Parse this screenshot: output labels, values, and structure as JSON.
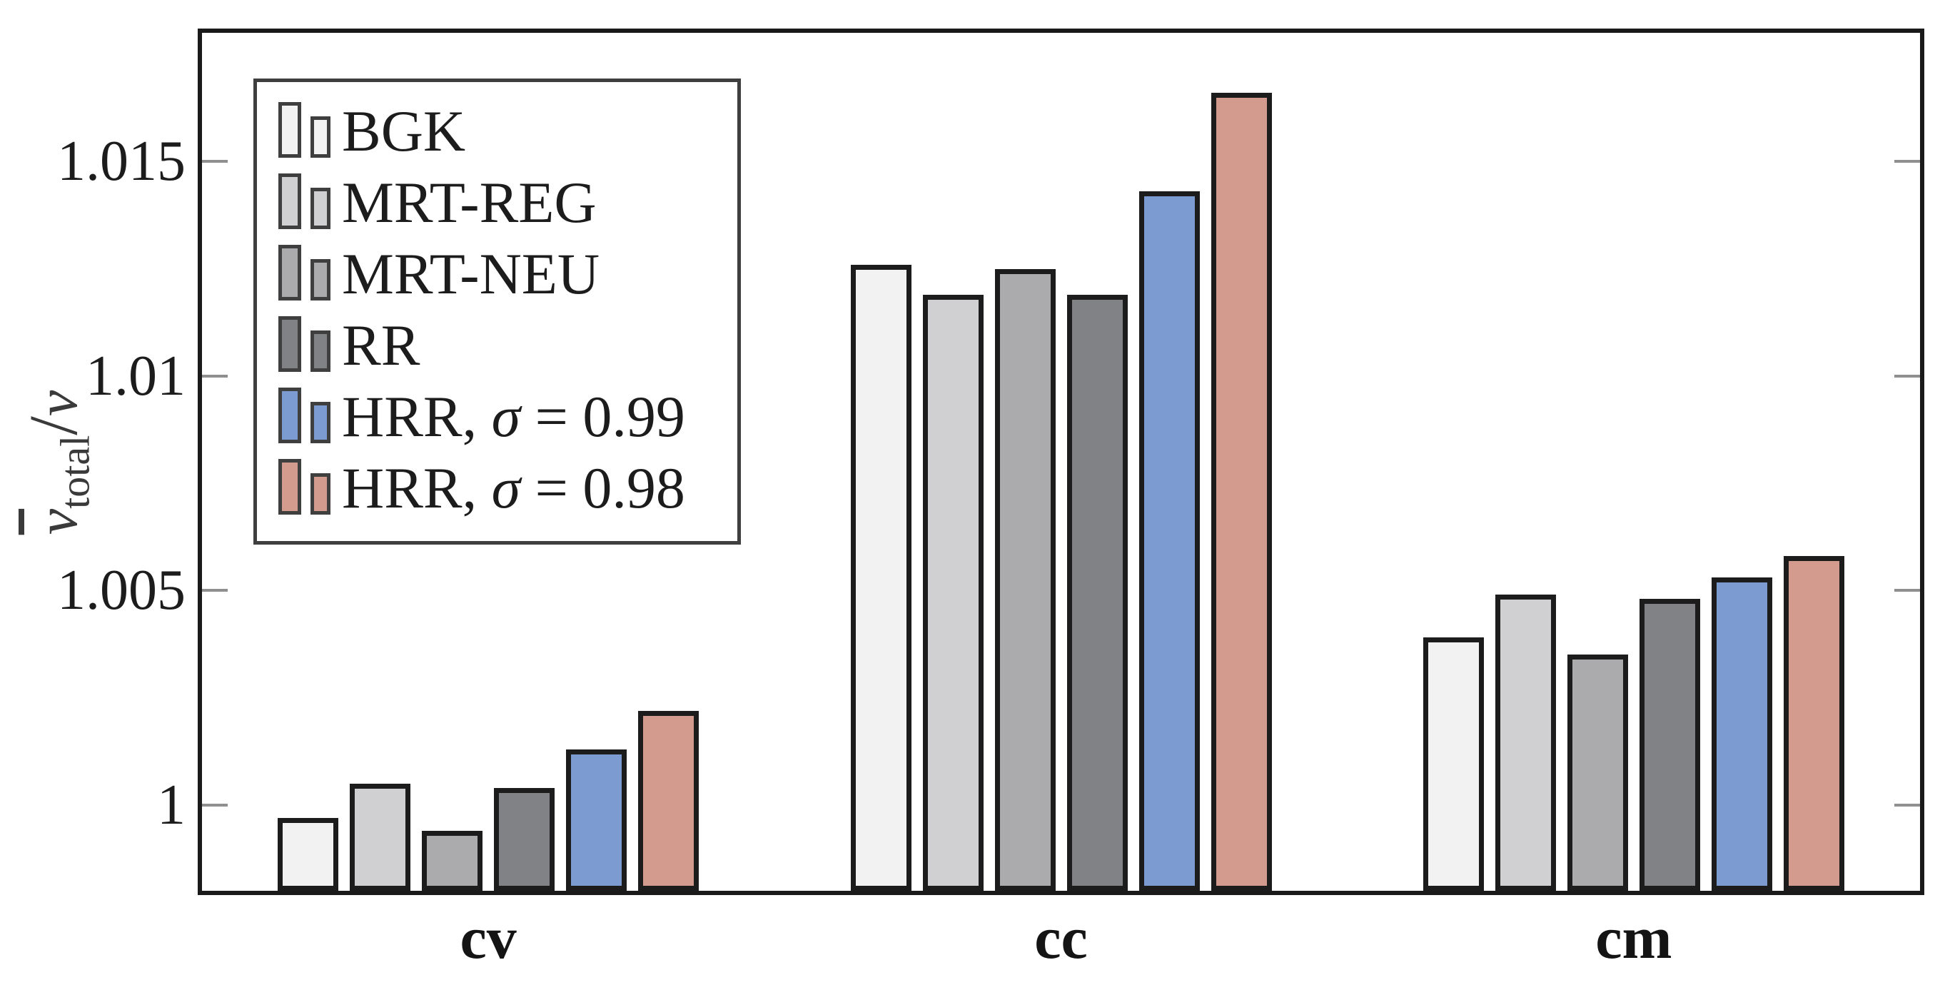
{
  "chart_data": {
    "type": "bar",
    "title": "",
    "xlabel": "",
    "ylabel": "ν̄_total/ν",
    "ylabel_parts": {
      "base": "ν",
      "subscript": "total",
      "slash": "/",
      "denominator": "ν"
    },
    "ylim": [
      0.998,
      1.018
    ],
    "grid": false,
    "legend_position": "top-left",
    "categories": [
      "cv",
      "cc",
      "cm"
    ],
    "yticks": [
      {
        "value": 1.0,
        "label": "1"
      },
      {
        "value": 1.005,
        "label": "1.005"
      },
      {
        "value": 1.01,
        "label": "1.01"
      },
      {
        "value": 1.015,
        "label": "1.015"
      }
    ],
    "series": [
      {
        "name": "BGK",
        "color": "#f2f2f2",
        "values": [
          0.9997,
          1.0126,
          1.0039
        ]
      },
      {
        "name": "MRT-REG",
        "color": "#d0d0d2",
        "values": [
          1.0005,
          1.0119,
          1.0049
        ]
      },
      {
        "name": "MRT-NEU",
        "color": "#ababad",
        "values": [
          0.9994,
          1.0125,
          1.0035
        ]
      },
      {
        "name": "RR",
        "color": "#818285",
        "values": [
          1.0004,
          1.0119,
          1.0048
        ]
      },
      {
        "name": "HRR, σ = 0.99",
        "color": "#7c9cd1",
        "values": [
          1.0013,
          1.0143,
          1.0053
        ]
      },
      {
        "name": "HRR, σ = 0.98",
        "color": "#d39a8e",
        "values": [
          1.0022,
          1.0166,
          1.0058
        ]
      }
    ],
    "colors": {
      "frame": "#1a1a1a",
      "bar_border": "#1c1c1c",
      "tick": "#8f8f8f",
      "legend_border": "#3f3f3f",
      "text": "#1c1c1c",
      "axis_label_text": "#3a3a3a",
      "background": "#ffffff"
    }
  }
}
